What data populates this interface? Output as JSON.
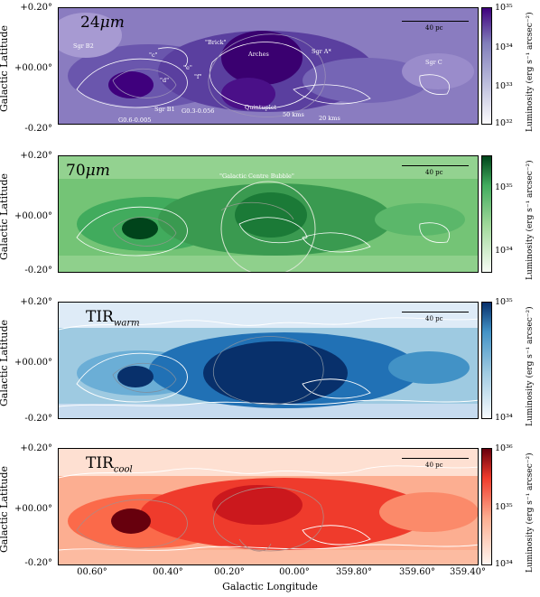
{
  "axes": {
    "ylabel": "Galactic Latitude",
    "xlabel": "Galactic Longitude",
    "yticks": [
      "+0.20°",
      "+00.00°",
      "-0.20°"
    ],
    "xticks": [
      "00.60°",
      "00.40°",
      "00.20°",
      "00.00°",
      "359.80°",
      "359.60°",
      "359.40°"
    ]
  },
  "colorbar_label": "Luminosity (erg s⁻¹ arcsec⁻²)",
  "scale_bar": "40 pc",
  "panels": [
    {
      "id": "24um",
      "label": "24",
      "label_unit": "μm",
      "label_sub": "",
      "colormap": "purple",
      "cb_ticks": [
        "10³⁵",
        "10³⁴",
        "10³³",
        "10³²"
      ],
      "annotations": [
        "Sgr B2",
        "Sgr B1",
        "G0.6-0.005",
        "\"Brick\"",
        "Arches",
        "Sgr A*",
        "Quintuplet",
        "G0.3-0.056",
        "50 kms",
        "20 kms",
        "Sgr C",
        "\"c\"",
        "\"d\"",
        "\"e\"",
        "\"f\""
      ]
    },
    {
      "id": "70um",
      "label": "70",
      "label_unit": "μm",
      "label_sub": "",
      "colormap": "green",
      "cb_ticks": [
        "10³⁵",
        "10³⁴"
      ],
      "annotations": [
        "\"Galactic Centre Bubble\""
      ]
    },
    {
      "id": "tirwarm",
      "label": "TIR",
      "label_unit": "",
      "label_sub": "warm",
      "colormap": "blue",
      "cb_ticks": [
        "10³⁵",
        "10³⁴"
      ],
      "annotations": []
    },
    {
      "id": "tircool",
      "label": "TIR",
      "label_unit": "",
      "label_sub": "cool",
      "colormap": "red",
      "cb_ticks": [
        "10³⁶",
        "10³⁵",
        "10³⁴"
      ],
      "annotations": []
    }
  ]
}
